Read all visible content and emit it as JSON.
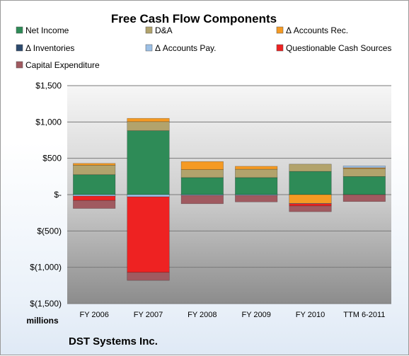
{
  "chart_data": {
    "type": "bar",
    "stacked": true,
    "title": "Free Cash Flow Components",
    "ylabel": "",
    "yunit_label": "millions",
    "footer": "DST Systems Inc.",
    "ylim": [
      -1500,
      1500
    ],
    "yticks": [
      1500,
      1000,
      500,
      0,
      -500,
      -1000,
      -1500
    ],
    "ytick_labels": [
      "$1,500",
      "$1,000",
      "$500",
      "$-",
      "$(500)",
      "$(1,000)",
      "$(1,500)"
    ],
    "categories": [
      "FY 2006",
      "FY 2007",
      "FY 2008",
      "FY 2009",
      "FY 2010",
      "TTM 6-2011"
    ],
    "legend_position": "top",
    "grid": true,
    "series": [
      {
        "name": "Net Income",
        "color": "#2e8b57",
        "values": [
          275,
          880,
          235,
          235,
          320,
          250
        ]
      },
      {
        "name": "D&A",
        "color": "#b2a36c",
        "values": [
          130,
          125,
          110,
          115,
          100,
          110
        ]
      },
      {
        "name": "Δ Accounts Rec.",
        "color": "#f59a23",
        "values": [
          25,
          45,
          110,
          40,
          -120,
          10
        ]
      },
      {
        "name": "Δ Inventories",
        "color": "#2c4a6e",
        "values": [
          0,
          0,
          0,
          0,
          0,
          0
        ]
      },
      {
        "name": "Δ Accounts Pay.",
        "color": "#9cc0e6",
        "values": [
          -20,
          -30,
          -10,
          -10,
          -5,
          25
        ]
      },
      {
        "name": "Questionable Cash Sources",
        "color": "#ee2222",
        "values": [
          -60,
          -1040,
          0,
          0,
          -30,
          0
        ]
      },
      {
        "name": "Capital Expenditure",
        "color": "#a05a60",
        "values": [
          -110,
          -110,
          -115,
          -90,
          -80,
          -95
        ]
      }
    ]
  }
}
